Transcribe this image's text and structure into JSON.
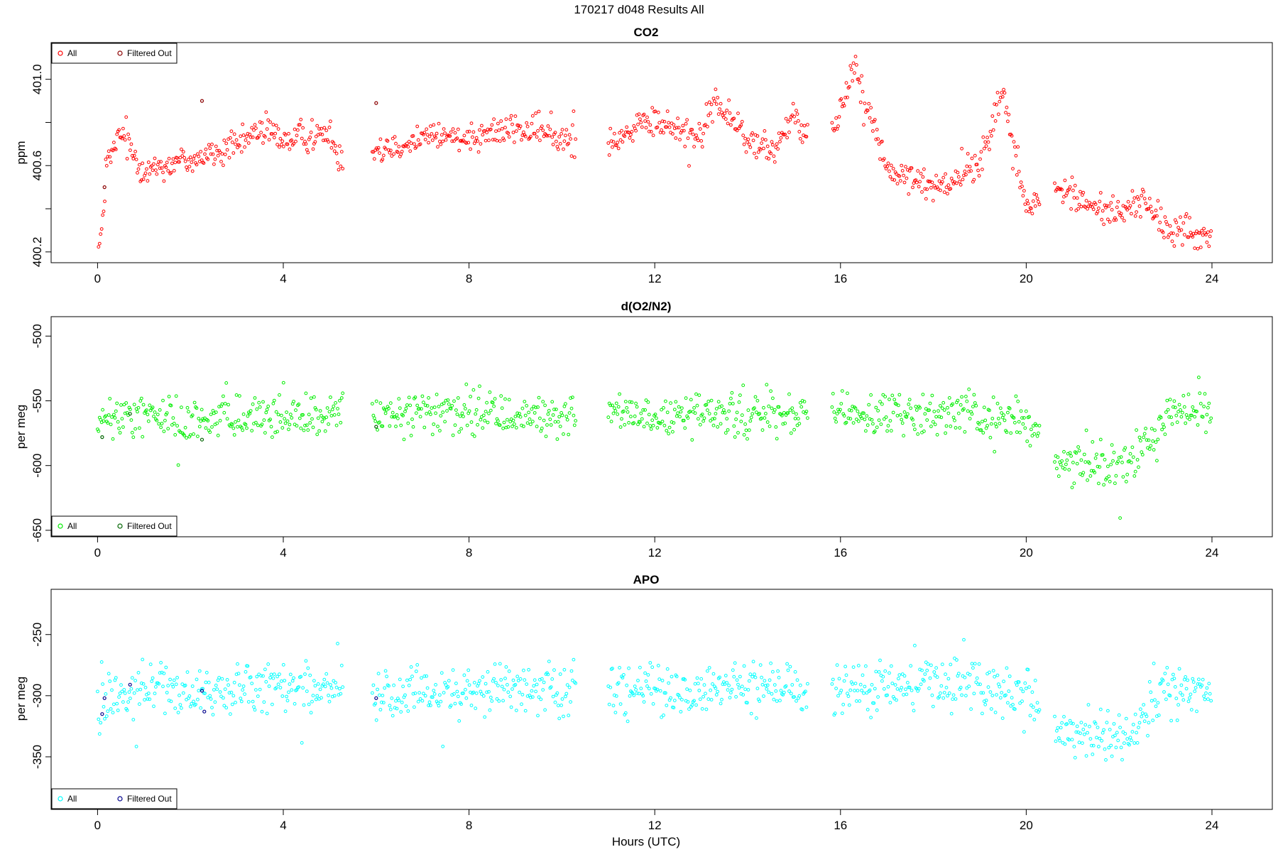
{
  "figure": {
    "title": "170217   d048   Results All",
    "xlabel": "Hours (UTC)"
  },
  "chart_data": [
    {
      "type": "scatter",
      "title": "CO2",
      "xlabel": "",
      "ylabel": "ppm",
      "xlim": [
        -1,
        25.3
      ],
      "ylim": [
        400.15,
        401.17
      ],
      "xticks": [
        0,
        4,
        8,
        12,
        16,
        20,
        24
      ],
      "yticks": [
        400.2,
        400.4,
        400.6,
        400.8,
        401.0
      ],
      "ytick_labels": [
        "400.2",
        "",
        "400.6",
        "",
        "401.0"
      ],
      "legend": {
        "placement": "top-left",
        "entries": [
          "All",
          "Filtered Out"
        ]
      },
      "colors": {
        "all": "#ff0000",
        "filtered": "#8b0000"
      },
      "gaps": [
        [
          5.3,
          5.9
        ],
        [
          10.3,
          11.0
        ],
        [
          15.3,
          15.8
        ],
        [
          20.3,
          20.6
        ]
      ],
      "series": [
        {
          "name": "All",
          "x": [
            0,
            0.1,
            0.2,
            0.5,
            1,
            2,
            3,
            3.5,
            4,
            5,
            5.2,
            6,
            7,
            8,
            9,
            10,
            10.2,
            11,
            12,
            13,
            13.3,
            14,
            14.5,
            15,
            15.2,
            15.9,
            16.3,
            17,
            18,
            19,
            19.5,
            20,
            20.2,
            20.7,
            21.5,
            22,
            22.5,
            23,
            23.5,
            24
          ],
          "y": [
            400.2,
            400.3,
            400.6,
            400.75,
            400.58,
            400.63,
            400.68,
            400.78,
            400.72,
            400.75,
            400.65,
            400.68,
            400.73,
            400.74,
            400.77,
            400.73,
            400.72,
            400.72,
            400.8,
            400.74,
            400.9,
            400.72,
            400.65,
            400.85,
            400.75,
            400.78,
            401.08,
            400.58,
            400.5,
            400.6,
            400.95,
            400.4,
            400.42,
            400.5,
            400.4,
            400.38,
            400.45,
            400.3,
            400.3,
            400.25
          ]
        },
        {
          "name": "Filtered Out",
          "x": [
            0.15,
            2.25,
            6.0
          ],
          "y": [
            400.5,
            400.9,
            400.89
          ]
        }
      ]
    },
    {
      "type": "scatter",
      "title": "d(O2/N2)",
      "xlabel": "",
      "ylabel": "per meg",
      "xlim": [
        -1,
        25.3
      ],
      "ylim": [
        -655,
        -485
      ],
      "xticks": [
        0,
        4,
        8,
        12,
        16,
        20,
        24
      ],
      "yticks": [
        -650,
        -600,
        -550,
        -500
      ],
      "ytick_labels": [
        "-650",
        "-600",
        "-550",
        "-500"
      ],
      "legend": {
        "placement": "bottom-left",
        "entries": [
          "All",
          "Filtered Out"
        ]
      },
      "colors": {
        "all": "#00ee00",
        "filtered": "#006400"
      },
      "gaps": [
        [
          5.3,
          5.9
        ],
        [
          10.3,
          11.0
        ],
        [
          15.3,
          15.8
        ],
        [
          20.3,
          20.6
        ]
      ],
      "series": [
        {
          "name": "All",
          "x": [
            0,
            0.2,
            1,
            2,
            3,
            4,
            5,
            6,
            8,
            10,
            11,
            12,
            14,
            15,
            16,
            18,
            20,
            20.7,
            21.5,
            22,
            22.5,
            23,
            24
          ],
          "y": [
            -570,
            -565,
            -560,
            -565,
            -560,
            -565,
            -560,
            -562,
            -560,
            -562,
            -560,
            -562,
            -560,
            -562,
            -562,
            -558,
            -565,
            -595,
            -600,
            -600,
            -590,
            -560,
            -555
          ]
        },
        {
          "name": "Filtered Out",
          "x": [
            0.1,
            0.7,
            2.25,
            6.0
          ],
          "y": [
            -578,
            -560,
            -580,
            -570
          ]
        }
      ]
    },
    {
      "type": "scatter",
      "title": "APO",
      "xlabel": "",
      "ylabel": "per meg",
      "xlim": [
        -1,
        25.3
      ],
      "ylim": [
        -393,
        -213
      ],
      "xticks": [
        0,
        4,
        8,
        12,
        16,
        20,
        24
      ],
      "yticks": [
        -350,
        -300,
        -250
      ],
      "ytick_labels": [
        "-350",
        "-300",
        "-250"
      ],
      "legend": {
        "placement": "bottom-left",
        "entries": [
          "All",
          "Filtered Out"
        ]
      },
      "colors": {
        "all": "#00ffff",
        "filtered": "#00008b"
      },
      "gaps": [
        [
          5.3,
          5.9
        ],
        [
          10.3,
          11.0
        ],
        [
          15.3,
          15.8
        ],
        [
          20.3,
          20.6
        ]
      ],
      "series": [
        {
          "name": "All",
          "x": [
            0,
            0.2,
            1,
            2,
            3,
            4,
            5,
            6,
            8,
            10,
            11,
            12,
            14,
            15,
            16,
            18,
            20,
            20.7,
            21.5,
            22,
            22.5,
            23,
            24
          ],
          "y": [
            -310,
            -300,
            -292,
            -298,
            -295,
            -296,
            -295,
            -298,
            -295,
            -295,
            -295,
            -295,
            -295,
            -295,
            -295,
            -292,
            -298,
            -330,
            -330,
            -335,
            -320,
            -295,
            -290
          ]
        },
        {
          "name": "Filtered Out",
          "x": [
            0.1,
            0.15,
            0.7,
            2.25,
            2.3,
            6.0
          ],
          "y": [
            -315,
            -302,
            -291,
            -296,
            -313,
            -302
          ]
        }
      ]
    }
  ]
}
